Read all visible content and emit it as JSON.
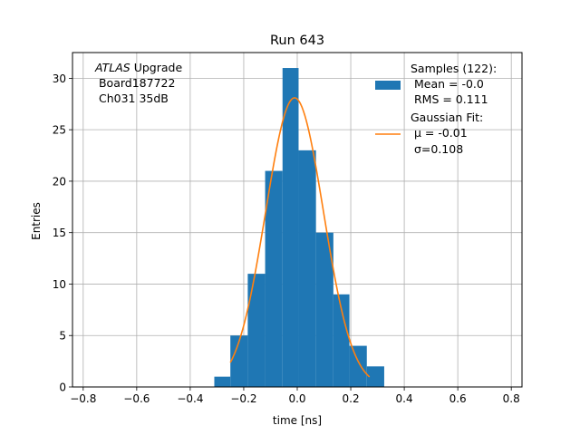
{
  "chart_data": {
    "type": "bar",
    "title": "Run 643",
    "xlabel": "time [ns]",
    "ylabel": "Entries",
    "xlim": [
      -0.84,
      0.84
    ],
    "ylim": [
      0,
      32.5
    ],
    "xticks": [
      -0.8,
      -0.6,
      -0.4,
      -0.2,
      0.0,
      0.2,
      0.4,
      0.6,
      0.8
    ],
    "xtick_labels": [
      "−0.8",
      "−0.6",
      "−0.4",
      "−0.2",
      "0.0",
      "0.2",
      "0.4",
      "0.6",
      "0.8"
    ],
    "yticks": [
      0,
      5,
      10,
      15,
      20,
      25,
      30
    ],
    "ytick_labels": [
      "0",
      "5",
      "10",
      "15",
      "20",
      "25",
      "30"
    ],
    "grid": true,
    "bin_edges": [
      -0.31,
      -0.245,
      -0.18,
      -0.115,
      -0.05,
      0.015,
      0.08,
      0.145,
      0.21,
      0.275,
      0.34
    ],
    "bar_left_edges": [
      -0.31,
      -0.25,
      -0.185,
      -0.12,
      -0.055,
      0.005,
      0.07,
      0.135,
      0.195,
      0.26
    ],
    "bar_right_edges": [
      -0.25,
      -0.185,
      -0.12,
      -0.055,
      0.005,
      0.07,
      0.135,
      0.195,
      0.26,
      0.325
    ],
    "values": [
      1,
      5,
      11,
      21,
      31,
      23,
      15,
      9,
      4,
      2
    ],
    "series": [
      {
        "name": "Samples (122):",
        "type": "histogram",
        "color": "#1f77b4"
      },
      {
        "name": "Gaussian Fit:",
        "type": "line",
        "color": "#ff7f0e",
        "mu": -0.01,
        "sigma": 0.108,
        "amplitude": 28.1,
        "x_range": [
          -0.25,
          0.27
        ]
      }
    ],
    "legend": {
      "placement": "top-right",
      "hist_label_lines": [
        "Samples (122):",
        " Mean = -0.0",
        " RMS = 0.111"
      ],
      "fit_label_lines": [
        "Gaussian Fit:",
        " μ = -0.01",
        " σ=0.108"
      ]
    },
    "annotation": {
      "italic": "ATLAS",
      "rest": " Upgrade",
      "line2": " Board187722",
      "line3": " Ch031 35dB"
    }
  }
}
